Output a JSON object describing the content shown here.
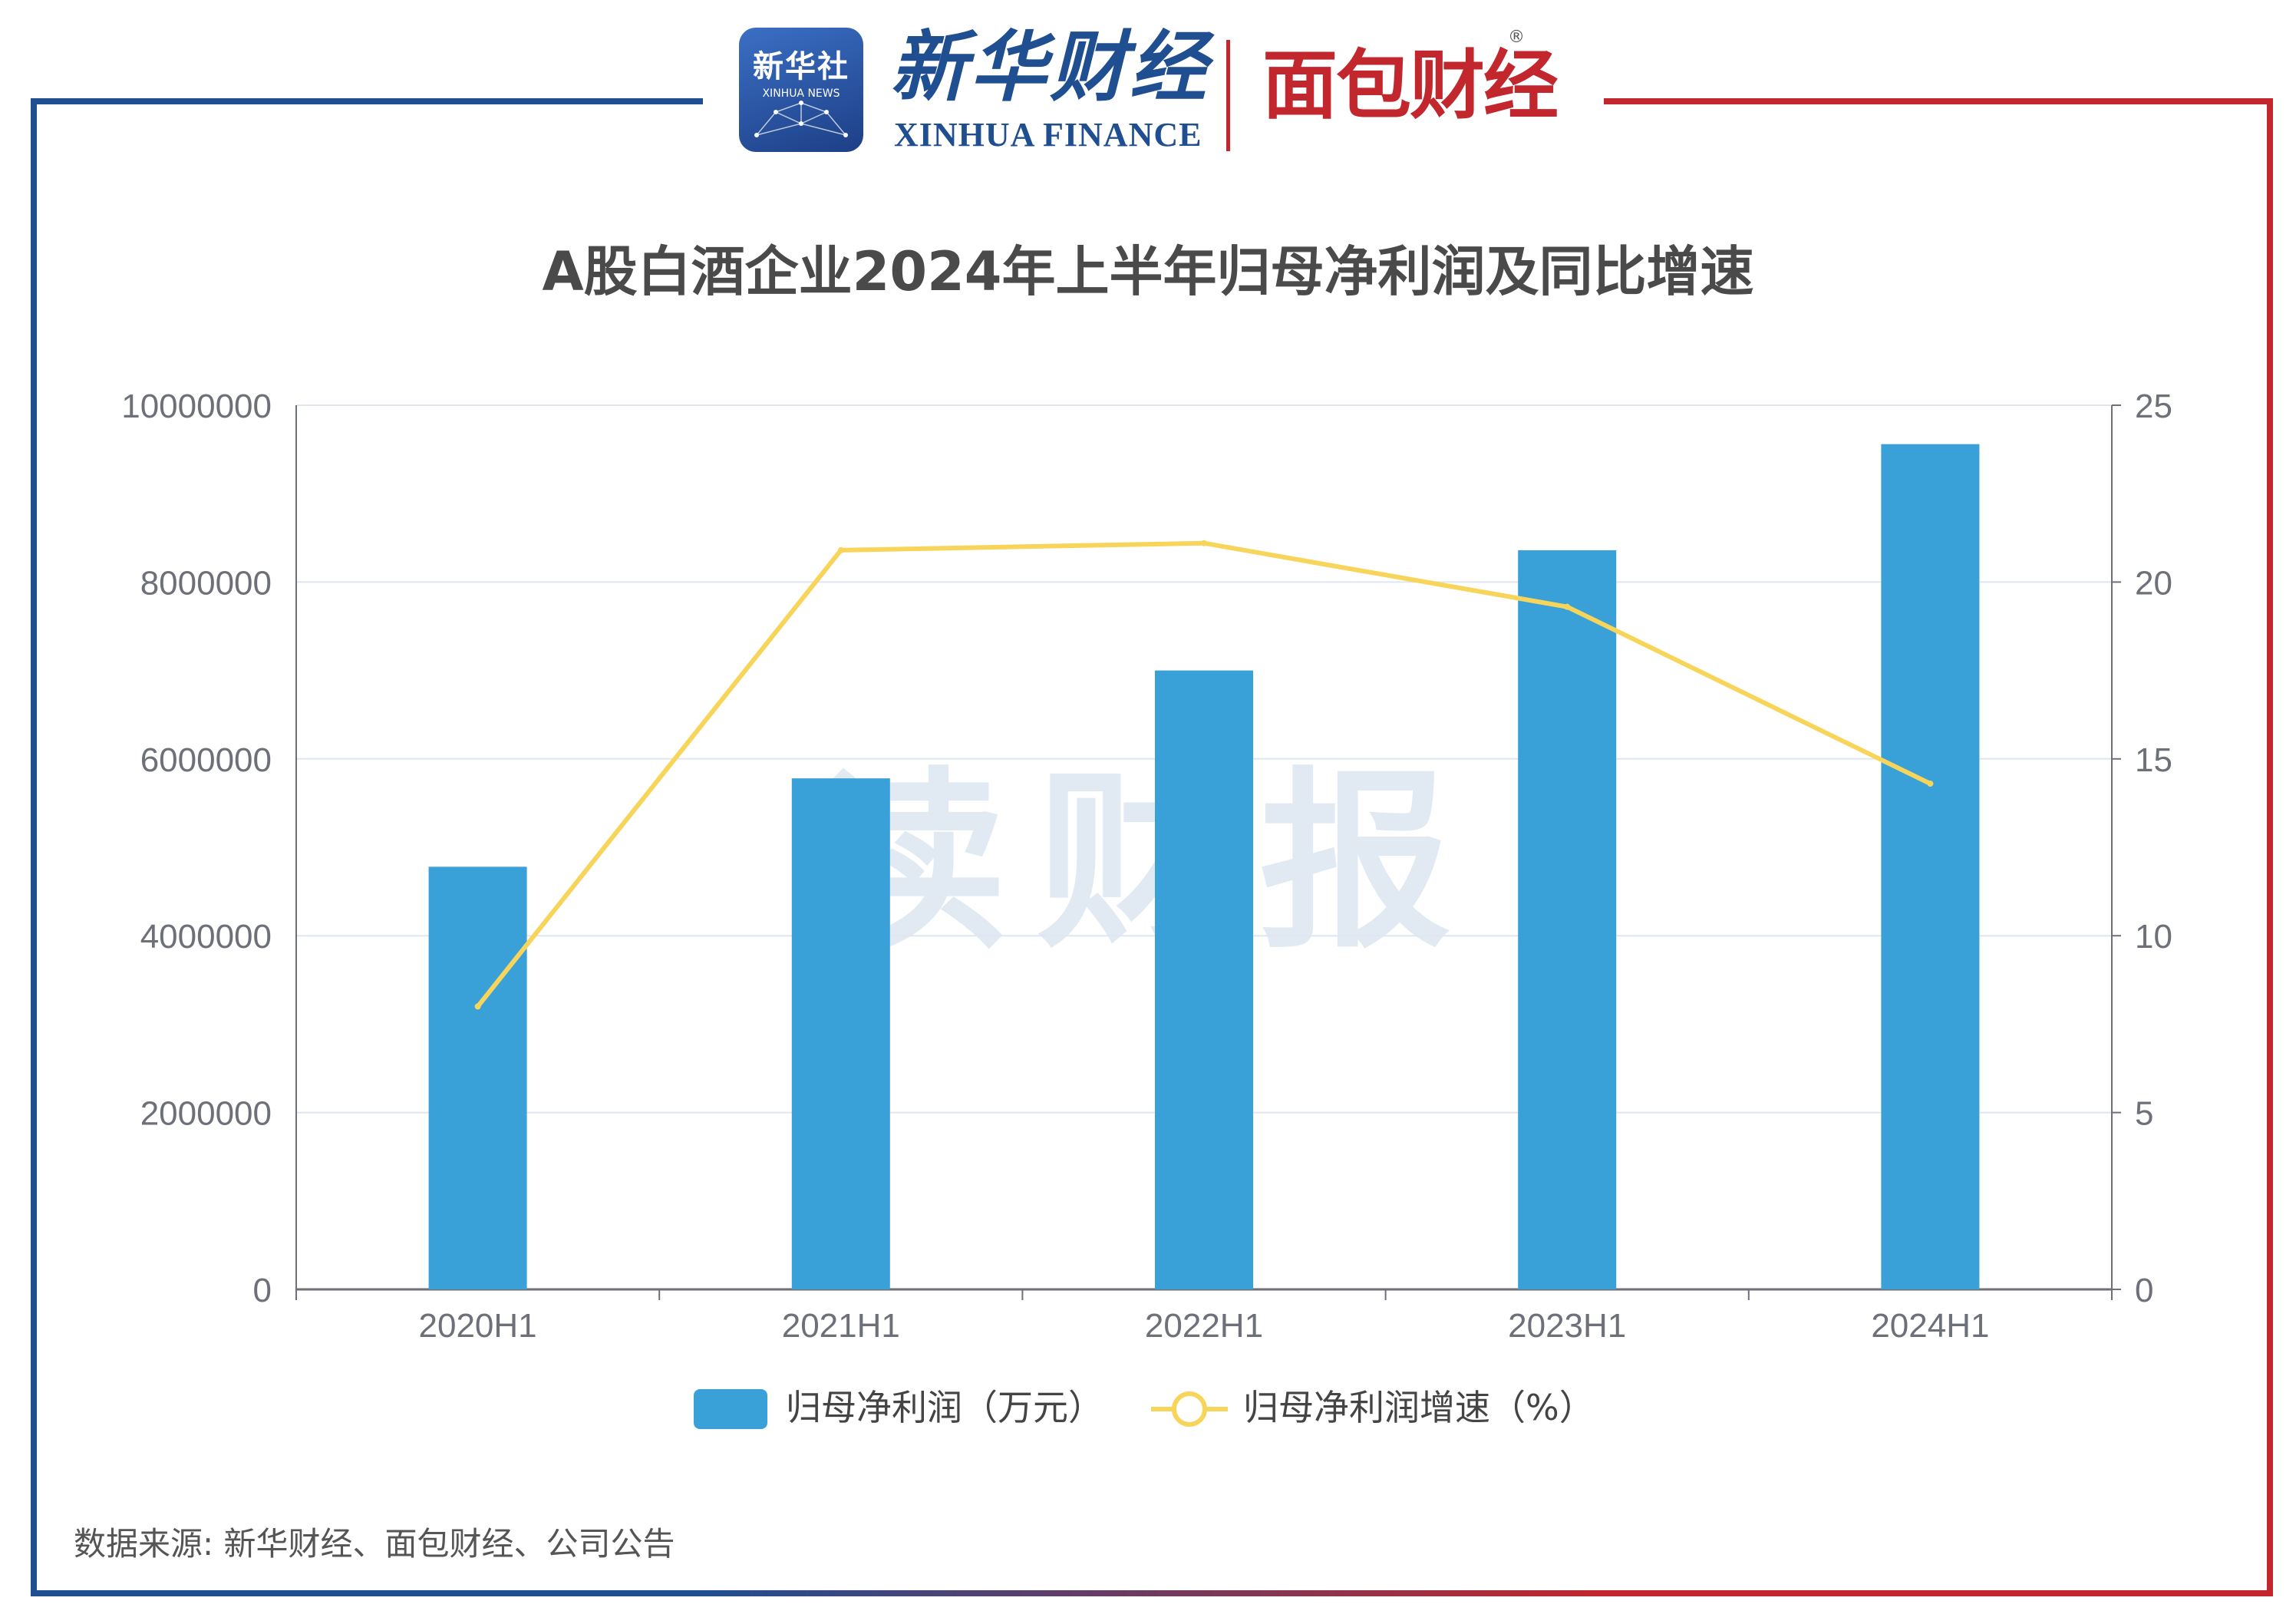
{
  "brand": {
    "xinhua_badge_cn": "新华社",
    "xinhua_badge_en": "XINHUA NEWS",
    "xinhua_finance_cn": "新华财经",
    "xinhua_finance_en": "XINHUA FINANCE",
    "partner": "面包财经",
    "registered_mark": "®",
    "watermark": "读财报"
  },
  "colors": {
    "bar": "#3aa0d8",
    "line": "#f7d55a",
    "axis": "#6e7079",
    "grid": "#e0e6f1",
    "frame_left": "#1f4e91",
    "frame_right": "#c1272d"
  },
  "chart_data": {
    "type": "bar",
    "title": "A股白酒企业2024年上半年归母净利润及同比增速",
    "categories": [
      "2020H1",
      "2021H1",
      "2022H1",
      "2023H1",
      "2024H1"
    ],
    "series": [
      {
        "name": "归母净利润（万元）",
        "type": "bar",
        "axis": "left",
        "values": [
          4780000,
          5780000,
          7000000,
          8360000,
          9560000
        ]
      },
      {
        "name": "归母净利润增速（%）",
        "type": "line",
        "axis": "right",
        "values": [
          8.0,
          20.9,
          21.1,
          19.3,
          14.3
        ]
      }
    ],
    "y_left": {
      "min": 0,
      "max": 10000000,
      "ticks": [
        "0",
        "2000000",
        "4000000",
        "6000000",
        "8000000",
        "10000000"
      ]
    },
    "y_right": {
      "min": 0,
      "max": 25,
      "ticks": [
        "0",
        "5",
        "10",
        "15",
        "20",
        "25"
      ]
    },
    "grid": true,
    "legend_position": "bottom"
  },
  "source": "数据来源: 新华财经、面包财经、公司公告"
}
